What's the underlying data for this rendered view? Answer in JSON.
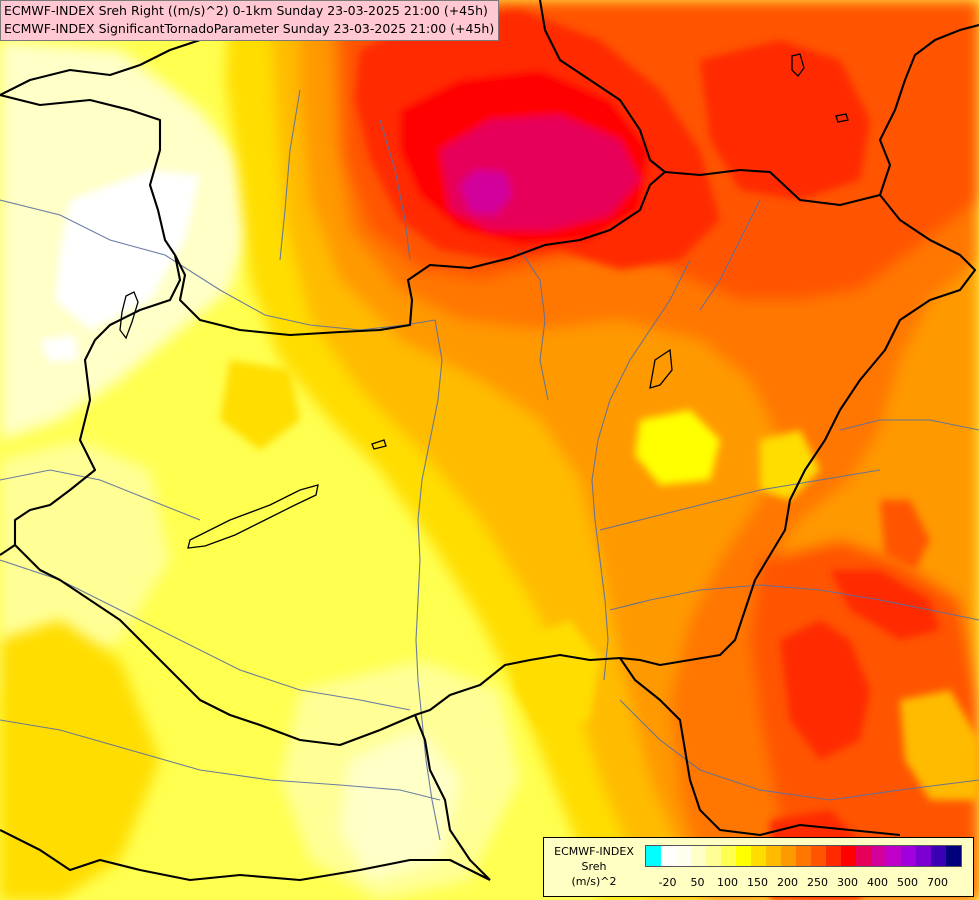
{
  "title_lines": [
    "ECMWF-INDEX Sreh Right ((m/s)^2) 0-1km Sunday 23-03-2025 21:00 (+45h)",
    "ECMWF-INDEX SignificantTornadoParameter Sunday 23-03-2025 21:00 (+45h)"
  ],
  "legend": {
    "model": "ECMWF-INDEX",
    "parameter": "Sreh",
    "unit": "(m/s)^2",
    "colors": [
      "#00ffff",
      "#ffffff",
      "#fffff0",
      "#ffffc8",
      "#ffff96",
      "#ffff50",
      "#ffff00",
      "#ffdd00",
      "#ffbb00",
      "#ff9900",
      "#ff7700",
      "#ff5500",
      "#ff2a00",
      "#ff0000",
      "#e6005a",
      "#d2009b",
      "#c000c8",
      "#a000dc",
      "#7a00d2",
      "#3c00b4",
      "#00007a"
    ],
    "tick_labels": [
      "-20",
      "50",
      "100",
      "150",
      "200",
      "250",
      "300",
      "400",
      "500",
      "700"
    ]
  }
}
